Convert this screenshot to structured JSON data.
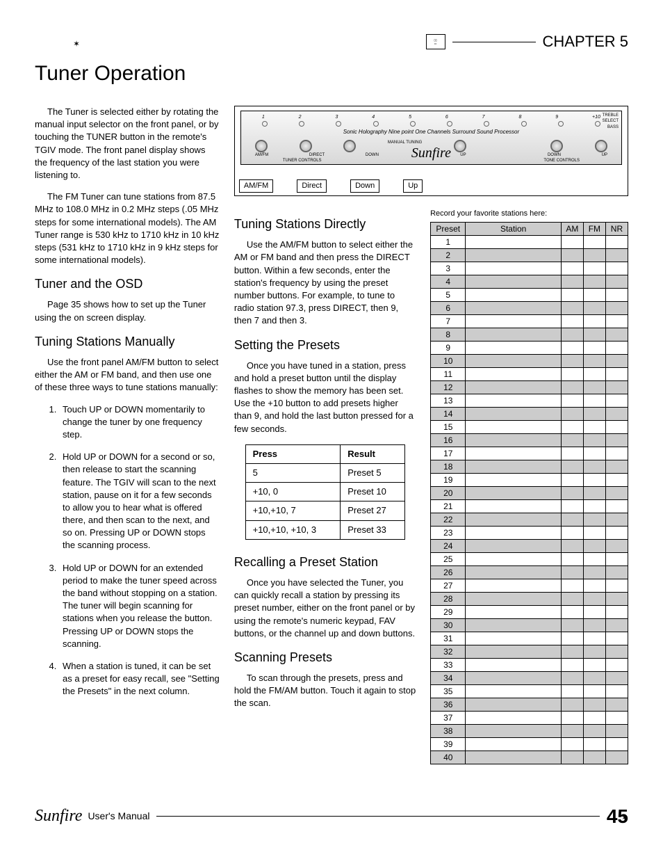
{
  "header": {
    "chapter": "CHAPTER 5"
  },
  "title": "Tuner Operation",
  "col1": {
    "p1": "The Tuner is selected either by rotating the manual input selector on the front panel, or by touching the TUNER button in the remote's TGIV mode. The front panel display shows the frequency of the last station you were listening to.",
    "p2": "The FM Tuner can tune stations from 87.5 MHz to 108.0 MHz in 0.2 MHz steps (.05 MHz steps for some international models). The AM Tuner range is 530 kHz to 1710 kHz in 10 kHz steps (531 kHz to 1710 kHz in 9 kHz steps for some international models).",
    "h1": "Tuner and the OSD",
    "p3": "Page 35 shows how to set up the Tuner using the on screen display.",
    "h2": "Tuning Stations Manually",
    "p4": "Use the front panel AM/FM button to select either the AM or FM band, and then use one of these three ways to tune stations manually:",
    "steps": [
      "Touch UP or DOWN momentarily to change the tuner by one frequency step.",
      "Hold UP or DOWN for a second or so, then release to start the scanning feature. The TGIV will scan to the next station, pause on it for a few seconds to allow you to hear what is offered there, and then scan to the next, and so on. Pressing UP or DOWN stops the scanning process.",
      "Hold UP or DOWN for an extended period to make the tuner speed across the band without stopping on a station. The tuner will begin scanning for stations when you release the button. Pressing UP or DOWN stops the scanning.",
      "When a station is tuned, it can be set as a preset for easy recall, see \"Setting the Presets\" in the next column."
    ]
  },
  "diagram": {
    "nums": [
      "1",
      "2",
      "3",
      "4",
      "5",
      "6",
      "7",
      "8",
      "9",
      "+10"
    ],
    "holo": "Sonic Holography Nine point One Channels Surround Sound Processor",
    "labels_left": [
      "AM/FM",
      "DIRECT",
      "DOWN",
      "UP"
    ],
    "labels_right": [
      "DOWN",
      "UP"
    ],
    "tuner_controls": "TUNER CONTROLS",
    "manual_tuning": "MANUAL TUNING",
    "tone_controls": "TONE CONTROLS",
    "treble": "TREBLE",
    "select": "SELECT",
    "bass": "BASS",
    "brand": "Sunfire",
    "buttons": [
      "AM/FM",
      "Direct",
      "Down",
      "Up"
    ]
  },
  "col2": {
    "h1": "Tuning Stations Directly",
    "p1": "Use the AM/FM button to select either the AM or FM band and then press the DIRECT button. Within a few seconds, enter the station's frequency by using the preset number buttons. For example, to tune to radio station 97.3, press DIRECT, then 9, then 7 and then 3.",
    "h2": "Setting the Presets",
    "p2": "Once you have tuned in a station, press and hold a preset button until the display flashes to show the memory has been set. Use the +10 button to add presets higher than 9, and hold the last button pressed for a few seconds.",
    "table": {
      "head": [
        "Press",
        "Result"
      ],
      "rows": [
        [
          "5",
          "Preset 5"
        ],
        [
          "+10, 0",
          "Preset 10"
        ],
        [
          "+10,+10, 7",
          "Preset 27"
        ],
        [
          "+10,+10, +10, 3",
          "Preset 33"
        ]
      ]
    },
    "h3": "Recalling a Preset Station",
    "p3": "Once you have selected the Tuner, you can quickly recall a station by pressing its preset number, either on the front panel or by using the remote's numeric keypad, FAV buttons, or the channel up and down buttons.",
    "h4": "Scanning Presets",
    "p4": "To scan through the presets, press and hold the FM/AM button. Touch it again to stop the scan."
  },
  "col3": {
    "note": "Record your favorite stations here:",
    "head": [
      "Preset",
      "Station",
      "AM",
      "FM",
      "NR"
    ],
    "rows": 40,
    "shaded_even": true
  },
  "footer": {
    "brand": "Sunfire",
    "text": "User's Manual",
    "page": "45"
  }
}
